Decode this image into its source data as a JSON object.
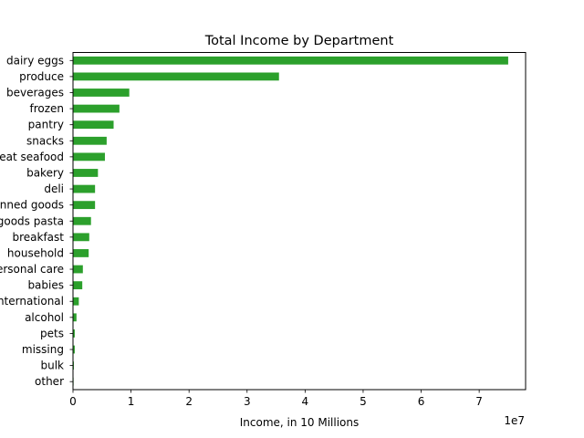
{
  "chart_data": {
    "type": "bar",
    "orientation": "horizontal",
    "title": "Total Income by Department",
    "xlabel": "Income, in 10 Millions",
    "ylabel": "",
    "xlim": [
      0,
      7.8
    ],
    "x_offset_label": "1e7",
    "xticks": [
      0,
      1,
      2,
      3,
      4,
      5,
      6,
      7
    ],
    "bar_color": "#2ca02c",
    "categories": [
      "dairy eggs",
      "produce",
      "beverages",
      "frozen",
      "pantry",
      "snacks",
      "meat seafood",
      "bakery",
      "deli",
      "canned goods",
      "dry goods pasta",
      "breakfast",
      "household",
      "personal care",
      "babies",
      "international",
      "alcohol",
      "pets",
      "missing",
      "bulk",
      "other"
    ],
    "values": [
      7.5,
      3.55,
      0.97,
      0.8,
      0.7,
      0.58,
      0.55,
      0.43,
      0.38,
      0.38,
      0.31,
      0.28,
      0.27,
      0.17,
      0.16,
      0.1,
      0.06,
      0.03,
      0.03,
      0.015,
      0.01
    ]
  }
}
